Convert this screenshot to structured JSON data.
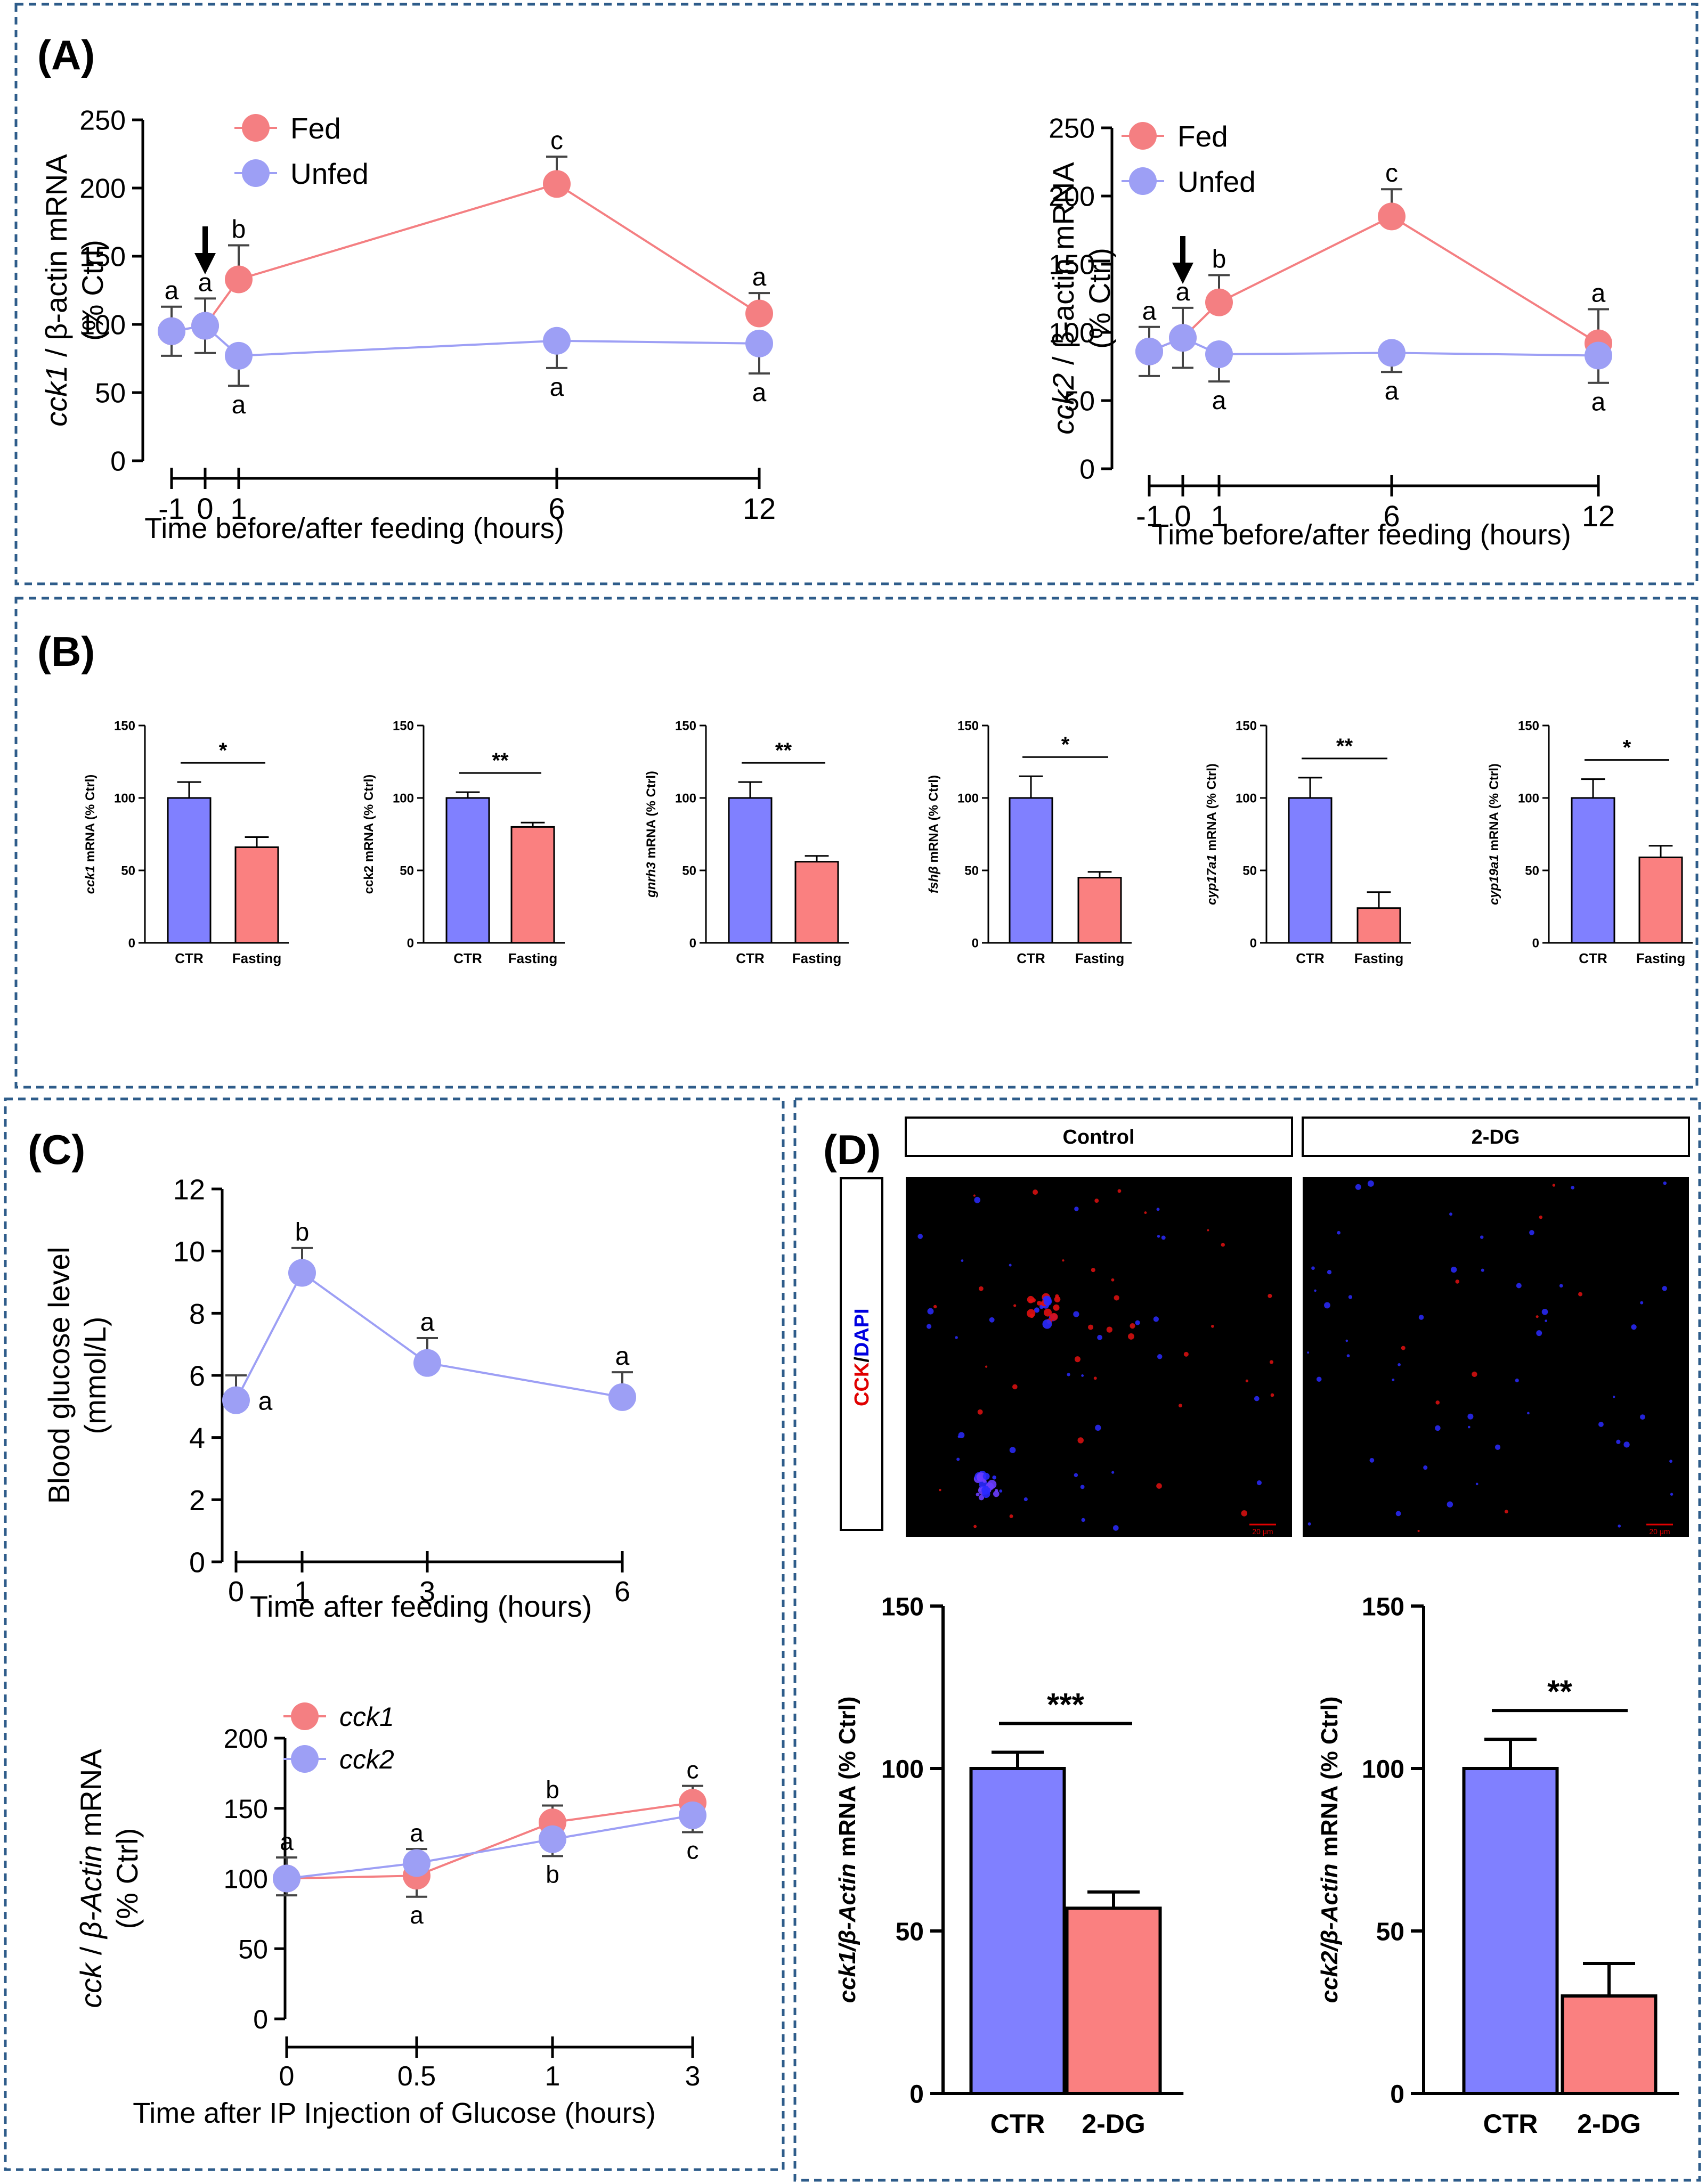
{
  "colors": {
    "fed": "#f47f82",
    "unfed": "#9d9ff5",
    "ctr_bar": "#8080ff",
    "fasting_bar": "#fa8080",
    "panel_border": "#2e5c8a",
    "cck_stain": "#ff0000",
    "dapi_stain": "#0000ff"
  },
  "panels": {
    "A": {
      "label": "(A)"
    },
    "B": {
      "label": "(B)"
    },
    "C": {
      "label": "(C)"
    },
    "D": {
      "label": "(D)"
    }
  },
  "chart_data": [
    {
      "id": "A1",
      "type": "line",
      "ylabel_italic": "cck1",
      "ylabel_rest": " / β-actin mRNA",
      "ylabel_line2": "(% Ctrl)",
      "xlabel": "Time before/after feeding (hours)",
      "ylim": [
        0,
        250
      ],
      "yticks": [
        0,
        50,
        100,
        150,
        200,
        250
      ],
      "x_ticks": [
        -1,
        0,
        1,
        6,
        12
      ],
      "x_tick_labels": [
        "-1",
        "0",
        "1",
        "6",
        "12"
      ],
      "arrow_at": 0,
      "legend": [
        "Fed",
        "Unfed"
      ],
      "series": [
        {
          "name": "Fed",
          "x": [
            -1,
            0,
            1,
            6,
            12
          ],
          "values": [
            95,
            99,
            133,
            203,
            108
          ],
          "errors": [
            18,
            20,
            25,
            20,
            15
          ],
          "letters": [
            "a",
            "a",
            "b",
            "c",
            "a"
          ],
          "letter_pos": [
            "above",
            "above",
            "above",
            "above",
            "above"
          ]
        },
        {
          "name": "Unfed",
          "x": [
            -1,
            0,
            1,
            6,
            12
          ],
          "values": [
            95,
            99,
            77,
            88,
            86
          ],
          "errors": [
            18,
            20,
            22,
            20,
            22
          ],
          "letters": [
            "",
            "",
            "a",
            "a",
            "a"
          ],
          "letter_pos": [
            "below",
            "below",
            "below",
            "below",
            "below"
          ]
        }
      ]
    },
    {
      "id": "A2",
      "type": "line",
      "ylabel_italic": "cck2",
      "ylabel_rest": " / β-actin mRNA",
      "ylabel_line2": "(% Ctrl)",
      "xlabel": "Time before/after feeding (hours)",
      "ylim": [
        0,
        250
      ],
      "yticks": [
        0,
        50,
        100,
        150,
        200,
        250
      ],
      "x_ticks": [
        -1,
        0,
        1,
        6,
        12
      ],
      "x_tick_labels": [
        "-1",
        "0",
        "1",
        "6",
        "12"
      ],
      "arrow_at": 0,
      "legend": [
        "Fed",
        "Unfed"
      ],
      "series": [
        {
          "name": "Fed",
          "x": [
            -1,
            0,
            1,
            6,
            12
          ],
          "values": [
            86,
            96,
            122,
            185,
            92
          ],
          "errors": [
            18,
            22,
            20,
            20,
            25
          ],
          "letters": [
            "a",
            "a",
            "b",
            "c",
            "a"
          ],
          "letter_pos": [
            "above",
            "above",
            "above",
            "above",
            "above"
          ]
        },
        {
          "name": "Unfed",
          "x": [
            -1,
            0,
            1,
            6,
            12
          ],
          "values": [
            86,
            96,
            84,
            85,
            83
          ],
          "errors": [
            18,
            22,
            20,
            14,
            20
          ],
          "letters": [
            "",
            "",
            "a",
            "a",
            "a"
          ],
          "letter_pos": [
            "below",
            "below",
            "below",
            "below",
            "below"
          ]
        }
      ]
    },
    {
      "id": "B1",
      "type": "bar",
      "ylabel_italic": "cck1",
      "ylabel_rest": " mRNA (% Ctrl)",
      "categories": [
        "CTR",
        "Fasting"
      ],
      "values": [
        100,
        66
      ],
      "errors": [
        11,
        7
      ],
      "ylim": [
        0,
        150
      ],
      "yticks": [
        0,
        50,
        100,
        150
      ],
      "significance": "*"
    },
    {
      "id": "B2",
      "type": "bar",
      "ylabel_italic": "",
      "ylabel_rest": "cck2 mRNA (% Ctrl)",
      "categories": [
        "CTR",
        "Fasting"
      ],
      "values": [
        100,
        80
      ],
      "errors": [
        4,
        3
      ],
      "ylim": [
        0,
        150
      ],
      "yticks": [
        0,
        50,
        100,
        150
      ],
      "significance": "**"
    },
    {
      "id": "B3",
      "type": "bar",
      "ylabel_italic": "gnrh3",
      "ylabel_rest": " mRNA (% Ctrl)",
      "categories": [
        "CTR",
        "Fasting"
      ],
      "values": [
        100,
        56
      ],
      "errors": [
        11,
        4
      ],
      "ylim": [
        0,
        150
      ],
      "yticks": [
        0,
        50,
        100,
        150
      ],
      "significance": "**"
    },
    {
      "id": "B4",
      "type": "bar",
      "ylabel_italic": "fshβ",
      "ylabel_rest": " mRNA (% Ctrl)",
      "categories": [
        "CTR",
        "Fasting"
      ],
      "values": [
        100,
        45
      ],
      "errors": [
        15,
        4
      ],
      "ylim": [
        0,
        150
      ],
      "yticks": [
        0,
        50,
        100,
        150
      ],
      "significance": "*"
    },
    {
      "id": "B5",
      "type": "bar",
      "ylabel_italic": "cyp17a1",
      "ylabel_rest": " mRNA (% Ctrl)",
      "categories": [
        "CTR",
        "Fasting"
      ],
      "values": [
        100,
        24
      ],
      "errors": [
        14,
        11
      ],
      "ylim": [
        0,
        150
      ],
      "yticks": [
        0,
        50,
        100,
        150
      ],
      "significance": "**"
    },
    {
      "id": "B6",
      "type": "bar",
      "ylabel_italic": "cyp19a1",
      "ylabel_rest": " mRNA (% Ctrl)",
      "categories": [
        "CTR",
        "Fasting"
      ],
      "values": [
        100,
        59
      ],
      "errors": [
        13,
        8
      ],
      "ylim": [
        0,
        150
      ],
      "yticks": [
        0,
        50,
        100,
        150
      ],
      "significance": "*"
    },
    {
      "id": "C1",
      "type": "line",
      "ylabel": "Blood glucose level",
      "ylabel_line2": "(mmol/L)",
      "xlabel": "Time after feeding (hours)",
      "ylim": [
        0,
        12
      ],
      "yticks": [
        0,
        2,
        4,
        6,
        8,
        10,
        12
      ],
      "x_ticks": [
        0,
        1,
        3,
        6
      ],
      "x_tick_labels": [
        "0",
        "1",
        "3",
        "6"
      ],
      "series": [
        {
          "name": "Glucose",
          "x": [
            0,
            1,
            3,
            6
          ],
          "values": [
            5.2,
            9.3,
            6.4,
            5.3
          ],
          "errors": [
            0.8,
            0.8,
            0.8,
            0.8
          ],
          "letters": [
            "a",
            "b",
            "a",
            "a"
          ],
          "letter_pos": [
            "right",
            "above",
            "above",
            "above"
          ]
        }
      ]
    },
    {
      "id": "C2",
      "type": "line",
      "ylabel_italic": "cck",
      "ylabel_rest": " / ",
      "ylabel_italic2": "β-Actin",
      "ylabel_rest2": " mRNA",
      "ylabel_line2": "(% Ctrl)",
      "xlabel": "Time after IP Injection of Glucose (hours)",
      "ylim": [
        0,
        200
      ],
      "yticks": [
        0,
        50,
        100,
        150,
        200
      ],
      "x_ticks": [
        0,
        0.5,
        1,
        3
      ],
      "x_tick_labels": [
        "0",
        "0.5",
        "1",
        "3"
      ],
      "legend": [
        "cck1",
        "cck2"
      ],
      "series": [
        {
          "name": "cck1",
          "x": [
            0,
            0.5,
            1,
            3
          ],
          "values": [
            100,
            102,
            140,
            154
          ],
          "errors": [
            15,
            15,
            12,
            12
          ],
          "letters": [
            "a",
            "a",
            "b",
            "c"
          ],
          "letter_pos": [
            "above",
            "below",
            "above",
            "above"
          ]
        },
        {
          "name": "cck2",
          "x": [
            0,
            0.5,
            1,
            3
          ],
          "values": [
            100,
            111,
            128,
            145
          ],
          "errors": [
            12,
            10,
            12,
            12
          ],
          "letters": [
            "",
            "a",
            "b",
            "c"
          ],
          "letter_pos": [
            "below",
            "above",
            "below",
            "below"
          ]
        }
      ]
    },
    {
      "id": "D1",
      "type": "bar",
      "ylabel_italic": "cck1/β-Actin",
      "ylabel_rest": "  mRNA (% Ctrl)",
      "categories": [
        "CTR",
        "2-DG"
      ],
      "values": [
        100,
        57
      ],
      "errors": [
        5,
        5
      ],
      "ylim": [
        0,
        150
      ],
      "yticks": [
        0,
        50,
        100,
        150
      ],
      "significance": "***"
    },
    {
      "id": "D2",
      "type": "bar",
      "ylabel_italic": "cck2/β-Actin",
      "ylabel_rest": "  mRNA (% Ctrl)",
      "categories": [
        "CTR",
        "2-DG"
      ],
      "values": [
        100,
        30
      ],
      "errors": [
        9,
        10
      ],
      "ylim": [
        0,
        150
      ],
      "yticks": [
        0,
        50,
        100,
        150
      ],
      "significance": "**"
    }
  ],
  "microscopy": {
    "control_label": "Control",
    "treatment_label": "2-DG",
    "stain_label_red": "CCK",
    "stain_label_sep": "/",
    "stain_label_blue": "DAPI",
    "scale_bar": "20 μm"
  }
}
